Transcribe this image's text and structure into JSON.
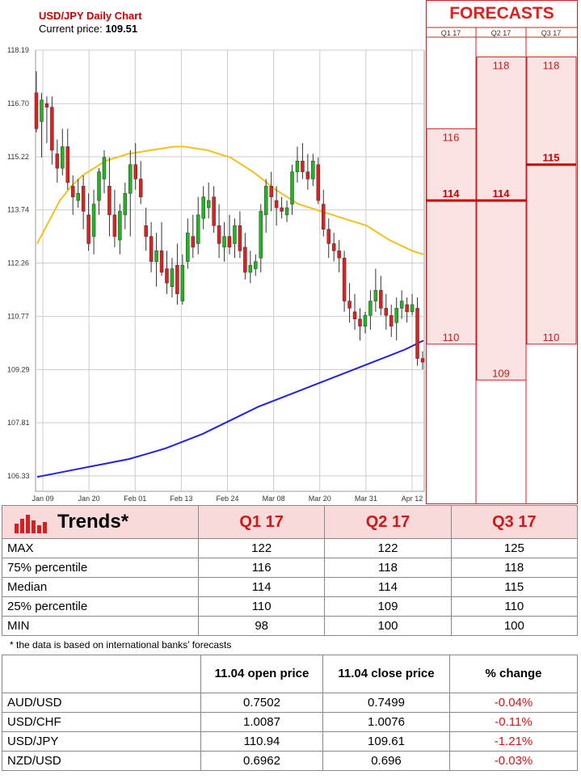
{
  "chart": {
    "title": "USD/JPY Daily Chart",
    "price_label": "Current price:",
    "price_value": "109.51"
  },
  "forecasts": {
    "header": "FORECASTS",
    "quarters": [
      "Q1 17",
      "Q2 17",
      "Q3 17"
    ]
  },
  "chart_data": [
    {
      "type": "candlestick",
      "title": "USD/JPY Daily Chart",
      "y_ticks": [
        "118.19",
        "116.70",
        "115.22",
        "113.74",
        "112.26",
        "110.77",
        "109.29",
        "107.81",
        "106.33"
      ],
      "ylim": [
        105.9,
        118.19
      ],
      "x_ticks": [
        "Jan 09",
        "Jan 20",
        "Feb 01",
        "Feb 13",
        "Feb 24",
        "Mar 08",
        "Mar 20",
        "Mar 31",
        "Apr 12"
      ],
      "grid": true,
      "up_color": "#22b422",
      "down_color": "#dd2020",
      "candles": [
        [
          117.0,
          117.6,
          115.9,
          116.0
        ],
        [
          116.2,
          117.0,
          115.2,
          116.8
        ],
        [
          116.7,
          116.9,
          115.6,
          116.6
        ],
        [
          116.6,
          116.9,
          115.0,
          115.4
        ],
        [
          115.3,
          115.7,
          114.5,
          114.9
        ],
        [
          114.9,
          116.0,
          114.7,
          115.5
        ],
        [
          115.5,
          116.0,
          114.3,
          114.5
        ],
        [
          114.4,
          114.7,
          113.6,
          114.1
        ],
        [
          114.0,
          114.6,
          113.8,
          114.2
        ],
        [
          114.4,
          114.7,
          113.2,
          113.7
        ],
        [
          113.6,
          114.2,
          112.6,
          112.8
        ],
        [
          113.0,
          114.3,
          112.5,
          113.9
        ],
        [
          114.0,
          114.9,
          113.6,
          114.8
        ],
        [
          114.6,
          115.4,
          114.2,
          115.2
        ],
        [
          114.4,
          115.2,
          113.0,
          113.6
        ],
        [
          113.6,
          114.3,
          112.7,
          113.0
        ],
        [
          112.9,
          113.9,
          112.5,
          113.7
        ],
        [
          113.6,
          114.5,
          113.2,
          114.2
        ],
        [
          114.2,
          115.4,
          113.0,
          115.0
        ],
        [
          115.0,
          115.6,
          114.3,
          114.6
        ],
        [
          114.6,
          115.1,
          113.9,
          114.1
        ],
        [
          113.3,
          113.8,
          112.6,
          113.0
        ],
        [
          113.0,
          113.4,
          112.0,
          112.3
        ],
        [
          112.3,
          113.1,
          111.6,
          112.6
        ],
        [
          112.6,
          113.4,
          111.9,
          112.0
        ],
        [
          112.1,
          112.6,
          111.4,
          111.7
        ],
        [
          111.6,
          112.4,
          111.3,
          112.1
        ],
        [
          112.2,
          112.8,
          111.1,
          111.4
        ],
        [
          111.2,
          112.5,
          111.1,
          112.2
        ],
        [
          112.3,
          113.5,
          112.1,
          113.1
        ],
        [
          113.0,
          113.6,
          112.4,
          112.7
        ],
        [
          112.8,
          114.1,
          112.5,
          113.6
        ],
        [
          113.5,
          114.4,
          113.2,
          114.1
        ],
        [
          113.8,
          114.5,
          113.5,
          114.0
        ],
        [
          114.1,
          114.4,
          113.1,
          113.3
        ],
        [
          113.3,
          113.9,
          112.4,
          112.8
        ],
        [
          112.7,
          113.4,
          112.3,
          113.0
        ],
        [
          113.0,
          113.6,
          112.5,
          112.7
        ],
        [
          112.8,
          113.5,
          112.4,
          113.3
        ],
        [
          113.3,
          113.7,
          112.4,
          112.6
        ],
        [
          112.7,
          113.1,
          111.8,
          112.0
        ],
        [
          112.0,
          112.6,
          111.7,
          112.2
        ],
        [
          112.1,
          112.5,
          111.9,
          112.3
        ],
        [
          112.4,
          113.9,
          112.0,
          113.7
        ],
        [
          113.6,
          114.6,
          113.1,
          114.4
        ],
        [
          114.4,
          114.8,
          113.7,
          114.1
        ],
        [
          114.0,
          114.4,
          113.3,
          113.8
        ],
        [
          113.8,
          114.1,
          113.5,
          113.7
        ],
        [
          113.6,
          114.0,
          113.4,
          113.8
        ],
        [
          113.9,
          115.0,
          113.6,
          114.8
        ],
        [
          114.8,
          115.5,
          114.5,
          115.1
        ],
        [
          115.1,
          115.6,
          114.6,
          114.8
        ],
        [
          114.8,
          115.3,
          114.3,
          114.6
        ],
        [
          114.6,
          115.3,
          114.4,
          115.1
        ],
        [
          115.0,
          115.2,
          113.9,
          114.0
        ],
        [
          113.9,
          114.3,
          113.0,
          113.2
        ],
        [
          113.2,
          113.5,
          112.4,
          112.8
        ],
        [
          112.8,
          113.1,
          112.3,
          112.6
        ],
        [
          112.6,
          112.9,
          112.0,
          112.4
        ],
        [
          112.4,
          112.6,
          110.9,
          111.2
        ],
        [
          111.2,
          111.7,
          110.6,
          111.0
        ],
        [
          110.9,
          111.4,
          110.4,
          110.7
        ],
        [
          110.7,
          111.0,
          110.1,
          110.5
        ],
        [
          110.5,
          110.9,
          110.3,
          110.8
        ],
        [
          110.8,
          111.5,
          110.4,
          111.2
        ],
        [
          111.2,
          112.1,
          110.9,
          111.5
        ],
        [
          111.5,
          111.9,
          110.8,
          111.0
        ],
        [
          111.0,
          111.4,
          110.4,
          110.8
        ],
        [
          110.8,
          111.1,
          110.2,
          110.5
        ],
        [
          110.6,
          111.3,
          110.1,
          111.0
        ],
        [
          111.0,
          111.5,
          110.7,
          111.2
        ],
        [
          111.1,
          111.3,
          110.6,
          110.9
        ],
        [
          110.9,
          111.4,
          110.8,
          111.1
        ],
        [
          111.0,
          111.3,
          109.4,
          109.6
        ],
        [
          109.6,
          109.8,
          109.3,
          109.5
        ]
      ],
      "series": [
        {
          "name": "",
          "color": "#f2c21b",
          "values": [
            112.8,
            113.4,
            114.0,
            114.4,
            114.7,
            114.9,
            115.1,
            115.2,
            115.3,
            115.35,
            115.4,
            115.45,
            115.5,
            115.5,
            115.45,
            115.4,
            115.3,
            115.2,
            115.0,
            114.8,
            114.55,
            114.3,
            114.1,
            113.9,
            113.8,
            113.7,
            113.6,
            113.5,
            113.4,
            113.3,
            113.1,
            112.9,
            112.75,
            112.6,
            112.5
          ]
        },
        {
          "name": "",
          "color": "#2222dd",
          "values": [
            106.3,
            106.4,
            106.5,
            106.6,
            106.7,
            106.8,
            106.95,
            107.1,
            107.3,
            107.5,
            107.75,
            108.0,
            108.25,
            108.45,
            108.65,
            108.85,
            109.05,
            109.25,
            109.45,
            109.65,
            109.85,
            110.1
          ]
        }
      ]
    },
    {
      "type": "bar",
      "title": "FORECASTS",
      "categories": [
        "Q1 17",
        "Q2 17",
        "Q3 17"
      ],
      "ylim": [
        105.9,
        118.19
      ],
      "ranges": [
        {
          "high": 116,
          "median": 114,
          "low": 110,
          "labels": [
            "116",
            "114",
            "110"
          ]
        },
        {
          "high": 118,
          "median": 114,
          "low": 109,
          "labels": [
            "118",
            "114",
            "109"
          ]
        },
        {
          "high": 118,
          "median": 115,
          "low": 110,
          "labels": [
            "118",
            "115",
            "110"
          ]
        }
      ],
      "fill_color": "#fbe3e3",
      "median_color": "#cc0000"
    }
  ],
  "trends": {
    "title": "Trends*",
    "columns": [
      "Q1 17",
      "Q2 17",
      "Q3 17"
    ],
    "rows": [
      {
        "label": "MAX",
        "values": [
          "122",
          "122",
          "125"
        ]
      },
      {
        "label": "75% percentile",
        "values": [
          "116",
          "118",
          "118"
        ]
      },
      {
        "label": "Median",
        "values": [
          "114",
          "114",
          "115"
        ]
      },
      {
        "label": "25% percentile",
        "values": [
          "110",
          "109",
          "110"
        ]
      },
      {
        "label": "MIN",
        "values": [
          "98",
          "100",
          "100"
        ]
      }
    ],
    "note": "* the data is based on international banks’ forecasts"
  },
  "fx": {
    "columns": [
      "",
      "11.04 open price",
      "11.04 close price",
      "% change"
    ],
    "rows": [
      {
        "pair": "AUD/USD",
        "open": "0.7502",
        "close": "0.7499",
        "change": "-0.04%"
      },
      {
        "pair": "USD/CHF",
        "open": "1.0087",
        "close": "1.0076",
        "change": "-0.11%"
      },
      {
        "pair": "USD/JPY",
        "open": "110.94",
        "close": "109.61",
        "change": "-1.21%"
      },
      {
        "pair": "NZD/USD",
        "open": "0.6962",
        "close": "0.696",
        "change": "-0.03%"
      }
    ]
  }
}
